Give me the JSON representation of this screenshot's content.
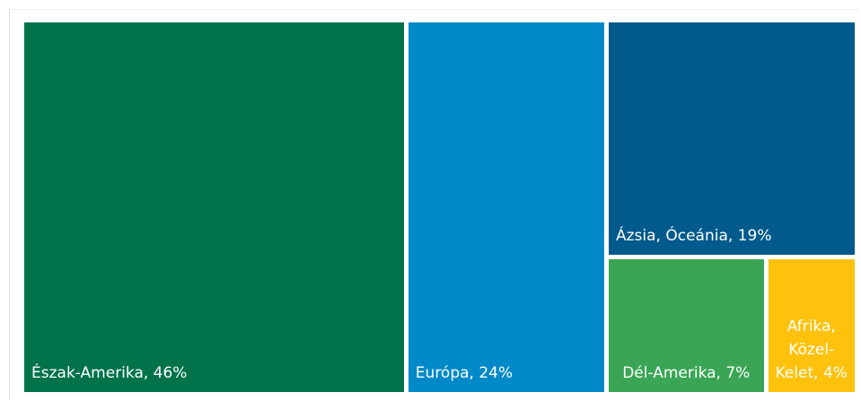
{
  "chart_data": {
    "type": "treemap",
    "labels": [
      "Észak-Amerika, 46%",
      "Európa, 24%",
      "Ázsia, Óceánia, 19%",
      "Dél-Amerika, 7%",
      "Afrika, Közel-Kelet, 4%"
    ],
    "values": [
      46,
      24,
      19,
      7,
      4
    ],
    "colors": [
      "#00734a",
      "#0089c8",
      "#005a8c",
      "#3aa655",
      "#fec20d"
    ]
  }
}
